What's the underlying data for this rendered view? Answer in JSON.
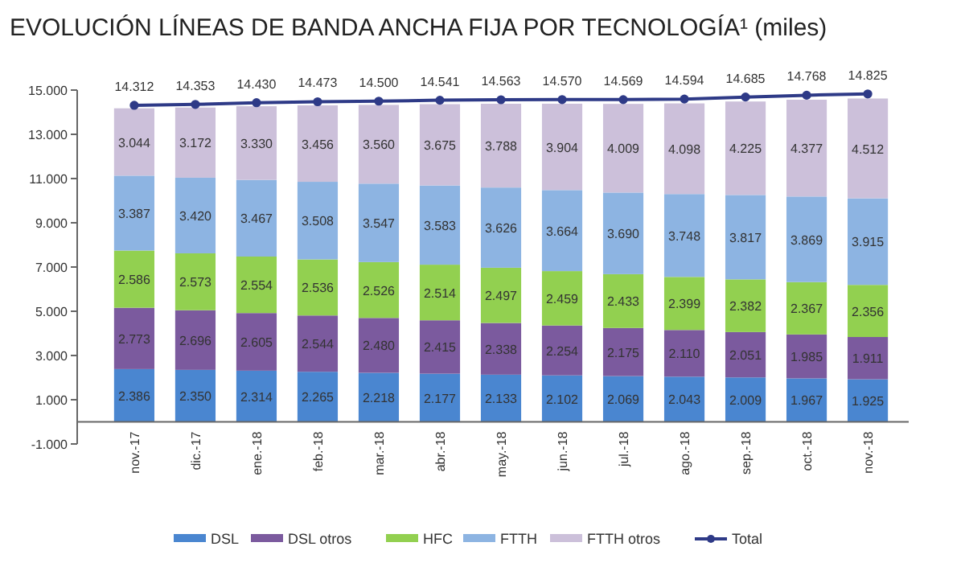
{
  "chart_data": {
    "type": "bar",
    "stacked": true,
    "legend": "bottom",
    "grid": false,
    "title": "EVOLUCIÓN LÍNEAS DE BANDA ANCHA FIJA POR TECNOLOGÍA¹ (miles)",
    "categories": [
      "nov.-17",
      "dic.-17",
      "ene.-18",
      "feb.-18",
      "mar.-18",
      "abr.-18",
      "may.-18",
      "jun.-18",
      "jul.-18",
      "ago.-18",
      "sep.-18",
      "oct.-18",
      "nov.-18"
    ],
    "ylim": [
      -1000,
      15000
    ],
    "yticks": [
      {
        "value": -1000,
        "label": "-1.000"
      },
      {
        "value": 1000,
        "label": "1.000"
      },
      {
        "value": 3000,
        "label": "3.000"
      },
      {
        "value": 5000,
        "label": "5.000"
      },
      {
        "value": 7000,
        "label": "7.000"
      },
      {
        "value": 9000,
        "label": "9.000"
      },
      {
        "value": 11000,
        "label": "11.000"
      },
      {
        "value": 13000,
        "label": "13.000"
      },
      {
        "value": 15000,
        "label": "15.000"
      }
    ],
    "series": [
      {
        "name": "DSL",
        "color": "#4a86d0",
        "values": [
          2386,
          2350,
          2314,
          2265,
          2218,
          2177,
          2133,
          2102,
          2069,
          2043,
          2009,
          1967,
          1925
        ],
        "value_labels": [
          "2.386",
          "2.350",
          "2.314",
          "2.265",
          "2.218",
          "2.177",
          "2.133",
          "2.102",
          "2.069",
          "2.043",
          "2.009",
          "1.967",
          "1.925"
        ]
      },
      {
        "name": "DSL otros",
        "color": "#7b5a9e",
        "values": [
          2773,
          2696,
          2605,
          2544,
          2480,
          2415,
          2338,
          2254,
          2175,
          2110,
          2051,
          1985,
          1911
        ],
        "value_labels": [
          "2.773",
          "2.696",
          "2.605",
          "2.544",
          "2.480",
          "2.415",
          "2.338",
          "2.254",
          "2.175",
          "2.110",
          "2.051",
          "1.985",
          "1.911"
        ]
      },
      {
        "name": "HFC",
        "color": "#92d050",
        "values": [
          2586,
          2573,
          2554,
          2536,
          2526,
          2514,
          2497,
          2459,
          2433,
          2399,
          2382,
          2367,
          2356
        ],
        "value_labels": [
          "2.586",
          "2.573",
          "2.554",
          "2.536",
          "2.526",
          "2.514",
          "2.497",
          "2.459",
          "2.433",
          "2.399",
          "2.382",
          "2.367",
          "2.356"
        ]
      },
      {
        "name": "FTTH",
        "color": "#8db4e2",
        "values": [
          3387,
          3420,
          3467,
          3508,
          3547,
          3583,
          3626,
          3664,
          3690,
          3748,
          3817,
          3869,
          3915
        ],
        "value_labels": [
          "3.387",
          "3.420",
          "3.467",
          "3.508",
          "3.547",
          "3.583",
          "3.626",
          "3.664",
          "3.690",
          "3.748",
          "3.817",
          "3.869",
          "3.915"
        ]
      },
      {
        "name": "FTTH otros",
        "color": "#ccc0da",
        "values": [
          3044,
          3172,
          3330,
          3456,
          3560,
          3675,
          3788,
          3904,
          4009,
          4098,
          4225,
          4377,
          4512
        ],
        "value_labels": [
          "3.044",
          "3.172",
          "3.330",
          "3.456",
          "3.560",
          "3.675",
          "3.788",
          "3.904",
          "4.009",
          "4.098",
          "4.225",
          "4.377",
          "4.512"
        ]
      },
      {
        "name": "Total",
        "type": "line",
        "color": "#2e3a87",
        "marker": "circle",
        "values": [
          14312,
          14353,
          14430,
          14473,
          14500,
          14541,
          14563,
          14570,
          14569,
          14594,
          14685,
          14768,
          14825
        ],
        "value_labels": [
          "14.312",
          "14.353",
          "14.430",
          "14.473",
          "14.500",
          "14.541",
          "14.563",
          "14.570",
          "14.569",
          "14.594",
          "14.685",
          "14.768",
          "14.825"
        ]
      }
    ]
  }
}
